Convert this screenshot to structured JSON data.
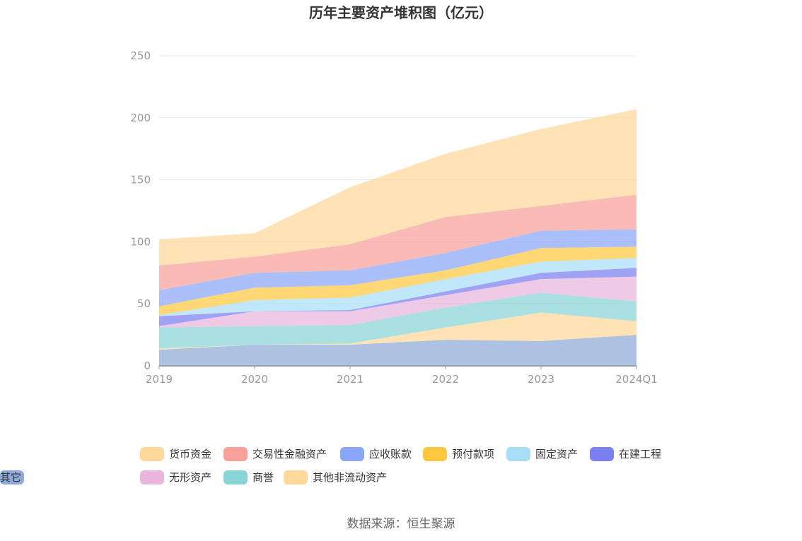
{
  "chart_data": {
    "type": "area",
    "stacked": true,
    "title": "历年主要资产堆积图（亿元）",
    "categories": [
      "2019",
      "2020",
      "2021",
      "2022",
      "2023",
      "2024Q1"
    ],
    "ylim": [
      0,
      250
    ],
    "yticks": [
      "0",
      "50",
      "100",
      "150",
      "200",
      "250"
    ],
    "grid": true,
    "legend_position": "bottom",
    "series": [
      {
        "name": "其它",
        "color": "#8eaad8",
        "values": [
          13,
          17,
          17,
          21,
          20,
          25
        ]
      },
      {
        "name": "其他非流动资产",
        "color": "#ffd89a",
        "values": [
          1,
          0,
          1,
          10,
          23,
          11
        ]
      },
      {
        "name": "商誉",
        "color": "#88d4d6",
        "values": [
          17,
          15,
          15,
          16,
          16,
          16
        ]
      },
      {
        "name": "无形资产",
        "color": "#e8b6dc",
        "values": [
          1,
          12,
          11,
          10,
          11,
          20
        ]
      },
      {
        "name": "在建工程",
        "color": "#7b80f0",
        "values": [
          8,
          0,
          1,
          3,
          5,
          7
        ]
      },
      {
        "name": "固定资产",
        "color": "#a8def8",
        "values": [
          1,
          9,
          10,
          10,
          9,
          8
        ]
      },
      {
        "name": "预付款项",
        "color": "#ffc840",
        "values": [
          7,
          10,
          10,
          7,
          11,
          9
        ]
      },
      {
        "name": "应收账款",
        "color": "#8aa6f8",
        "values": [
          13,
          12,
          12,
          14,
          14,
          14
        ]
      },
      {
        "name": "交易性金融资产",
        "color": "#f8a09a",
        "values": [
          20,
          13,
          21,
          29,
          20,
          28
        ]
      },
      {
        "name": "货币资金",
        "color": "#ffd89a",
        "values": [
          21,
          19,
          46,
          51,
          62,
          69
        ]
      }
    ],
    "legend_order": [
      "货币资金",
      "交易性金融资产",
      "应收账款",
      "预付款项",
      "固定资产",
      "在建工程",
      "无形资产",
      "商誉",
      "其他非流动资产",
      "其它"
    ]
  },
  "source": "数据来源：恒生聚源"
}
